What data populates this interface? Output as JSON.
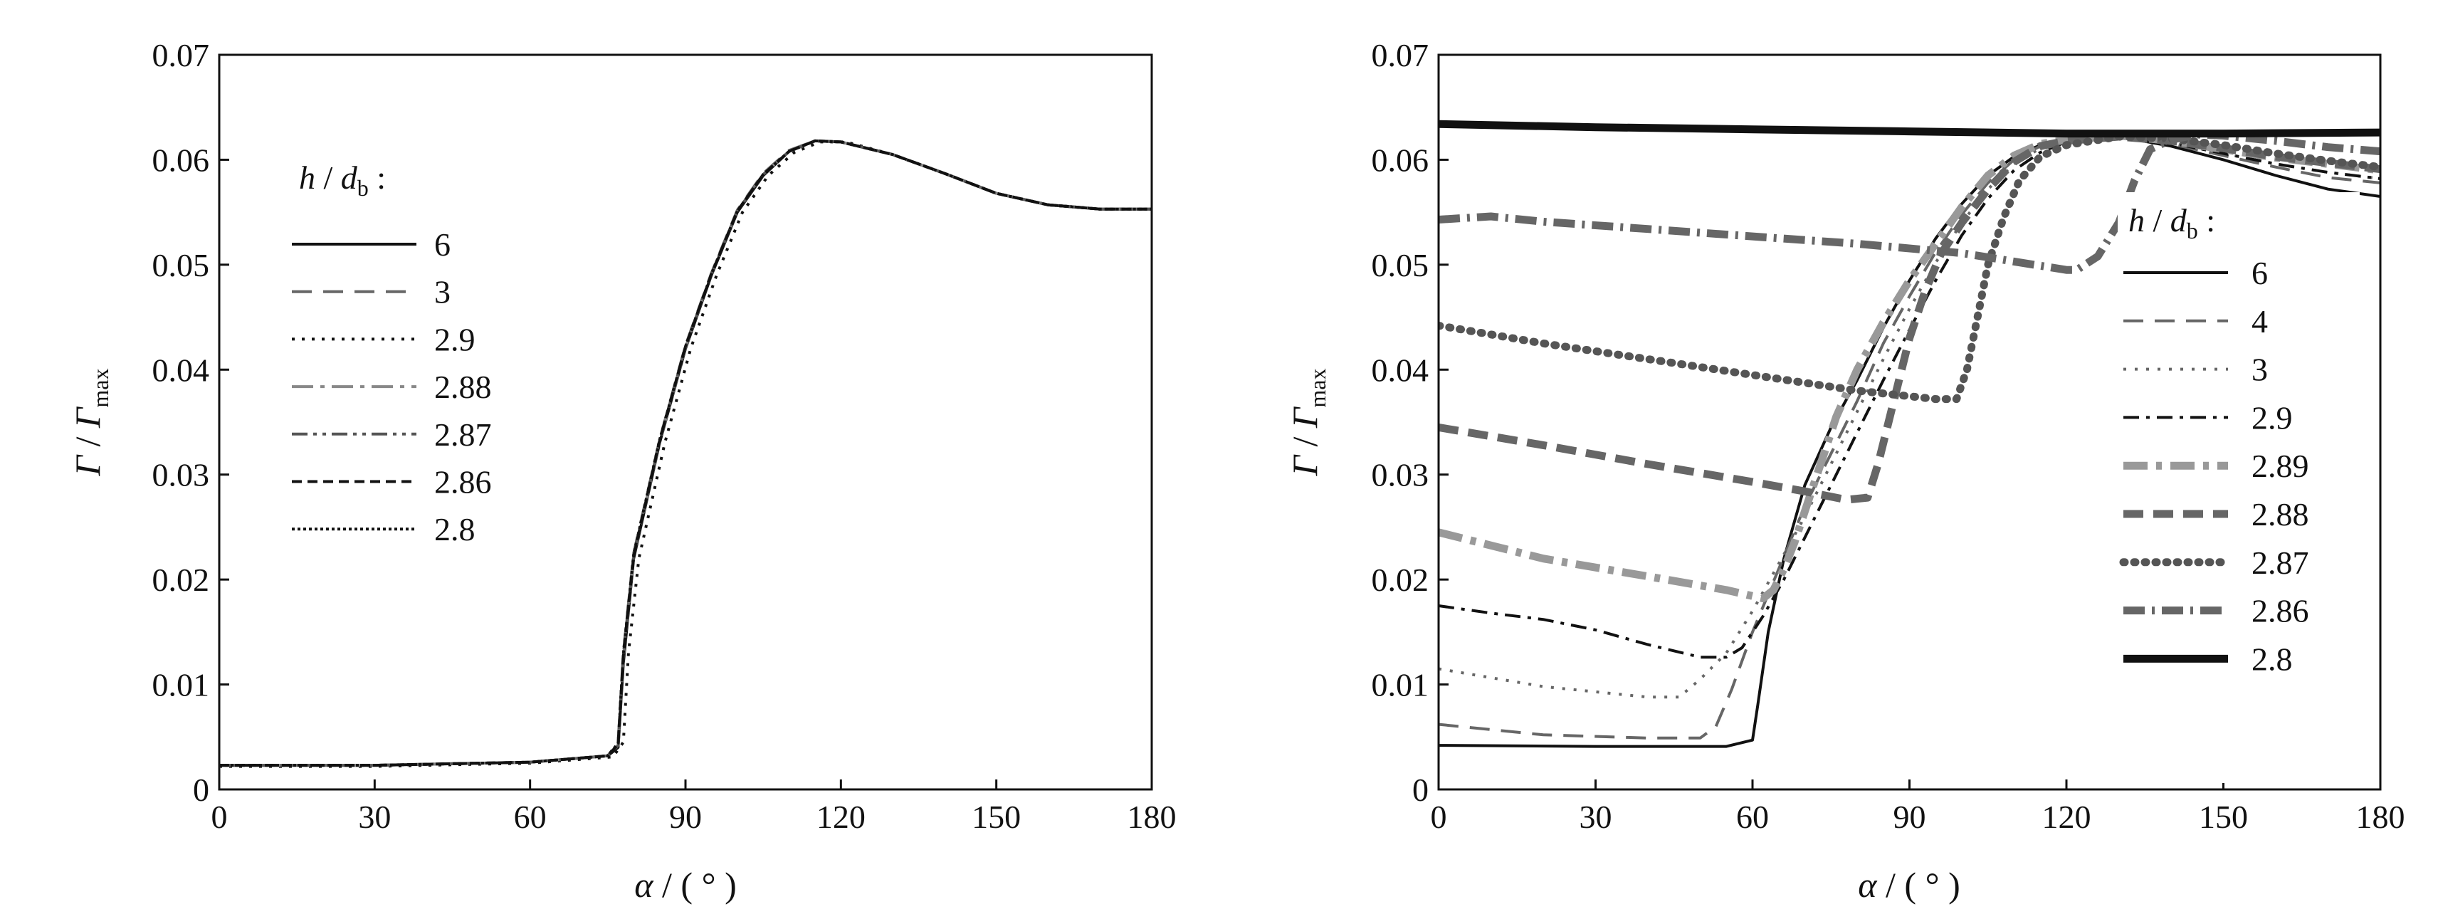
{
  "chart_data": [
    {
      "type": "line",
      "xlabel_sym": "α",
      "xlabel_unit": " / ( ° )",
      "ylabel_sym": "Γ",
      "ylabel_sep": " / ",
      "ylabel_sym2": "Γ",
      "ylabel_sub": "max",
      "xlim": [
        0,
        180
      ],
      "ylim": [
        0,
        0.07
      ],
      "xticks": [
        "0",
        "30",
        "60",
        "90",
        "120",
        "150",
        "180"
      ],
      "yticks": [
        "0",
        "0.01",
        "0.02",
        "0.03",
        "0.04",
        "0.05",
        "0.06",
        "0.07"
      ],
      "grid": false,
      "legend_title_sym": "h",
      "legend_title_sep": " / ",
      "legend_title_sym2": "d",
      "legend_title_sub": "b",
      "legend_title_colon": " :",
      "legend_position": "center-left",
      "series": [
        {
          "name": "6",
          "color": "#111111",
          "width": 4,
          "dash": "",
          "x": [
            0,
            30,
            60,
            75,
            77,
            78,
            80,
            85,
            90,
            95,
            100,
            105,
            110,
            115,
            120,
            130,
            140,
            150,
            160,
            170,
            180
          ],
          "y": [
            0.0023,
            0.0023,
            0.0026,
            0.0032,
            0.004,
            0.012,
            0.022,
            0.033,
            0.042,
            0.049,
            0.055,
            0.0585,
            0.0608,
            0.0618,
            0.0617,
            0.0605,
            0.0587,
            0.0568,
            0.0557,
            0.0553,
            0.0553
          ]
        },
        {
          "name": "3",
          "color": "#666666",
          "width": 4,
          "dash": "28,16",
          "x": [
            0,
            30,
            60,
            75,
            77,
            78,
            80,
            85,
            90,
            95,
            100,
            105,
            110,
            115,
            120,
            130,
            140,
            150,
            160,
            170,
            180
          ],
          "y": [
            0.0023,
            0.0023,
            0.0026,
            0.0032,
            0.0045,
            0.013,
            0.0225,
            0.0333,
            0.0423,
            0.0492,
            0.0552,
            0.0587,
            0.0609,
            0.0618,
            0.0617,
            0.0605,
            0.0587,
            0.0568,
            0.0557,
            0.0553,
            0.0553
          ]
        },
        {
          "name": "2.9",
          "color": "#111111",
          "width": 4,
          "dash": "4,10",
          "x": [
            0,
            30,
            60,
            76,
            78,
            79,
            81,
            86,
            91,
            96,
            101,
            106,
            111,
            116,
            121,
            130,
            140,
            150,
            160,
            170,
            180
          ],
          "y": [
            0.0022,
            0.0022,
            0.0025,
            0.0031,
            0.0045,
            0.013,
            0.022,
            0.033,
            0.042,
            0.049,
            0.055,
            0.0585,
            0.0607,
            0.0617,
            0.0617,
            0.0605,
            0.0587,
            0.0568,
            0.0557,
            0.0553,
            0.0553
          ]
        },
        {
          "name": "2.88",
          "color": "#888888",
          "width": 4,
          "dash": "30,10,6,10",
          "x": [
            0,
            30,
            60,
            75,
            77,
            78,
            80,
            85,
            90,
            95,
            100,
            105,
            110,
            115,
            120,
            130,
            140,
            150,
            160,
            170,
            180
          ],
          "y": [
            0.0023,
            0.0023,
            0.0026,
            0.0032,
            0.0042,
            0.0125,
            0.0222,
            0.0331,
            0.0421,
            0.0491,
            0.0551,
            0.0586,
            0.0608,
            0.0618,
            0.0617,
            0.0605,
            0.0587,
            0.0568,
            0.0557,
            0.0553,
            0.0553
          ]
        },
        {
          "name": "2.87",
          "color": "#555555",
          "width": 4,
          "dash": "22,8,5,8,5,8",
          "x": [
            0,
            30,
            60,
            75,
            77,
            78,
            80,
            85,
            90,
            95,
            100,
            105,
            110,
            115,
            120,
            130,
            140,
            150,
            160,
            170,
            180
          ],
          "y": [
            0.0023,
            0.0023,
            0.0026,
            0.0032,
            0.0042,
            0.0128,
            0.0223,
            0.0332,
            0.0422,
            0.0491,
            0.0551,
            0.0586,
            0.0608,
            0.0618,
            0.0617,
            0.0605,
            0.0587,
            0.0568,
            0.0557,
            0.0553,
            0.0553
          ]
        },
        {
          "name": "2.86",
          "color": "#111111",
          "width": 4,
          "dash": "14,8",
          "x": [
            0,
            30,
            60,
            75,
            77,
            78,
            80,
            85,
            90,
            95,
            100,
            105,
            110,
            115,
            120,
            130,
            140,
            150,
            160,
            170,
            180
          ],
          "y": [
            0.0023,
            0.0023,
            0.0026,
            0.0032,
            0.0043,
            0.0127,
            0.0222,
            0.0332,
            0.0422,
            0.0491,
            0.0551,
            0.0586,
            0.0608,
            0.0618,
            0.0617,
            0.0605,
            0.0587,
            0.0568,
            0.0557,
            0.0553,
            0.0553
          ]
        },
        {
          "name": "2.8",
          "color": "#111111",
          "width": 4,
          "dash": "4,4",
          "x": [
            0,
            30,
            60,
            75,
            77,
            78,
            80,
            85,
            90,
            95,
            100,
            105,
            110,
            115,
            120,
            130,
            140,
            150,
            160,
            170,
            180
          ],
          "y": [
            0.0023,
            0.0023,
            0.0026,
            0.0032,
            0.0044,
            0.0129,
            0.0224,
            0.0333,
            0.0422,
            0.0491,
            0.0551,
            0.0586,
            0.0608,
            0.0618,
            0.0617,
            0.0605,
            0.0587,
            0.0568,
            0.0557,
            0.0553,
            0.0553
          ]
        }
      ]
    },
    {
      "type": "line",
      "xlabel_sym": "α",
      "xlabel_unit": " / ( ° )",
      "ylabel_sym": "Γ",
      "ylabel_sep": " / ",
      "ylabel_sym2": "Γ",
      "ylabel_sub": "max",
      "xlim": [
        0,
        180
      ],
      "ylim": [
        0,
        0.07
      ],
      "xticks": [
        "0",
        "30",
        "60",
        "90",
        "120",
        "150",
        "180"
      ],
      "yticks": [
        "0",
        "0.01",
        "0.02",
        "0.03",
        "0.04",
        "0.05",
        "0.06",
        "0.07"
      ],
      "grid": false,
      "legend_title_sym": "h",
      "legend_title_sep": " / ",
      "legend_title_sym2": "d",
      "legend_title_sub": "b",
      "legend_title_colon": " :",
      "legend_position": "right",
      "series": [
        {
          "name": "6",
          "color": "#111111",
          "width": 4,
          "dash": "",
          "x": [
            0,
            30,
            55,
            60,
            61,
            63,
            66,
            70,
            75,
            80,
            85,
            90,
            95,
            100,
            105,
            110,
            115,
            120,
            130,
            140,
            150,
            160,
            170,
            180
          ],
          "y": [
            0.0042,
            0.0041,
            0.0041,
            0.0047,
            0.008,
            0.015,
            0.022,
            0.029,
            0.0345,
            0.039,
            0.044,
            0.0485,
            0.0525,
            0.0558,
            0.0585,
            0.0603,
            0.0614,
            0.062,
            0.0622,
            0.0613,
            0.06,
            0.0585,
            0.0572,
            0.0565
          ]
        },
        {
          "name": "4",
          "color": "#666666",
          "width": 4,
          "dash": "28,16",
          "x": [
            0,
            20,
            40,
            50,
            53,
            56,
            60,
            65,
            70,
            75,
            80,
            85,
            90,
            95,
            100,
            105,
            110,
            115,
            120,
            130,
            140,
            150,
            160,
            170,
            180
          ],
          "y": [
            0.0062,
            0.0052,
            0.0049,
            0.0049,
            0.006,
            0.0095,
            0.015,
            0.021,
            0.027,
            0.032,
            0.037,
            0.0425,
            0.047,
            0.0512,
            0.0548,
            0.0578,
            0.06,
            0.0613,
            0.0619,
            0.0622,
            0.0615,
            0.0604,
            0.0593,
            0.0583,
            0.0578
          ]
        },
        {
          "name": "3",
          "color": "#666666",
          "width": 4,
          "dash": "4,12",
          "x": [
            0,
            20,
            40,
            46,
            50,
            55,
            60,
            65,
            70,
            75,
            80,
            85,
            90,
            95,
            100,
            105,
            110,
            115,
            120,
            130,
            140,
            150,
            160,
            170,
            180
          ],
          "y": [
            0.0115,
            0.0098,
            0.0088,
            0.0088,
            0.0105,
            0.013,
            0.017,
            0.0215,
            0.026,
            0.031,
            0.036,
            0.041,
            0.0458,
            0.0502,
            0.054,
            0.0572,
            0.0596,
            0.0611,
            0.0618,
            0.0622,
            0.0616,
            0.0606,
            0.0596,
            0.0588,
            0.0582
          ]
        },
        {
          "name": "2.9",
          "color": "#111111",
          "width": 4,
          "dash": "22,10,5,10",
          "x": [
            0,
            10,
            20,
            30,
            40,
            50,
            55,
            58,
            62,
            66,
            70,
            75,
            80,
            85,
            90,
            95,
            100,
            105,
            110,
            115,
            120,
            130,
            140,
            150,
            160,
            170,
            180
          ],
          "y": [
            0.0175,
            0.0168,
            0.0162,
            0.0152,
            0.0138,
            0.0126,
            0.0126,
            0.0135,
            0.0165,
            0.02,
            0.024,
            0.029,
            0.034,
            0.039,
            0.0438,
            0.0485,
            0.0528,
            0.0563,
            0.059,
            0.0607,
            0.0617,
            0.0621,
            0.0616,
            0.0606,
            0.0596,
            0.0588,
            0.0582
          ]
        },
        {
          "name": "2.89",
          "color": "#999999",
          "width": 11,
          "dash": "34,12,8,12",
          "x": [
            0,
            20,
            40,
            55,
            62,
            64,
            66,
            68,
            70,
            73,
            76,
            80,
            85,
            90,
            95,
            100,
            105,
            110,
            115,
            120,
            130,
            140,
            150,
            160,
            170,
            180
          ],
          "y": [
            0.0245,
            0.022,
            0.0203,
            0.019,
            0.0182,
            0.019,
            0.021,
            0.0235,
            0.0265,
            0.031,
            0.0355,
            0.04,
            0.0445,
            0.0485,
            0.052,
            0.0555,
            0.0585,
            0.0604,
            0.0615,
            0.0619,
            0.0623,
            0.0618,
            0.061,
            0.0602,
            0.0596,
            0.059
          ]
        },
        {
          "name": "2.88",
          "color": "#666666",
          "width": 11,
          "dash": "28,14",
          "x": [
            0,
            20,
            40,
            60,
            70,
            78,
            82,
            84,
            86,
            88,
            90,
            93,
            96,
            100,
            105,
            110,
            115,
            120,
            130,
            140,
            150,
            160,
            170,
            180
          ],
          "y": [
            0.0345,
            0.0328,
            0.031,
            0.0293,
            0.0284,
            0.0276,
            0.0278,
            0.031,
            0.035,
            0.039,
            0.043,
            0.0475,
            0.051,
            0.054,
            0.0572,
            0.0598,
            0.0613,
            0.0618,
            0.0622,
            0.0618,
            0.0611,
            0.0603,
            0.0597,
            0.0591
          ]
        },
        {
          "name": "2.87",
          "color": "#555555",
          "width": 11,
          "dash": "2,13",
          "x": [
            0,
            20,
            40,
            60,
            80,
            95,
            99,
            101,
            103,
            105,
            108,
            111,
            115,
            120,
            130,
            140,
            150,
            160,
            170,
            180
          ],
          "y": [
            0.0442,
            0.0425,
            0.041,
            0.0395,
            0.038,
            0.0372,
            0.0372,
            0.04,
            0.045,
            0.05,
            0.0545,
            0.058,
            0.0603,
            0.0614,
            0.0622,
            0.062,
            0.0614,
            0.0606,
            0.0599,
            0.0593
          ]
        },
        {
          "name": "2.86",
          "color": "#666666",
          "width": 11,
          "dash": "30,10,4,10",
          "x": [
            0,
            10,
            20,
            40,
            60,
            80,
            100,
            115,
            120,
            122,
            126,
            130,
            133,
            136,
            140,
            145,
            150,
            160,
            170,
            180
          ],
          "y": [
            0.0543,
            0.0546,
            0.0541,
            0.0534,
            0.0527,
            0.052,
            0.0511,
            0.0499,
            0.0495,
            0.0495,
            0.0508,
            0.054,
            0.058,
            0.061,
            0.0619,
            0.0624,
            0.0623,
            0.0618,
            0.0612,
            0.0608
          ]
        },
        {
          "name": "2.8",
          "color": "#111111",
          "width": 11,
          "dash": "",
          "x": [
            0,
            30,
            60,
            90,
            120,
            150,
            180
          ],
          "y": [
            0.0634,
            0.0631,
            0.0629,
            0.0627,
            0.0625,
            0.0625,
            0.0626
          ]
        }
      ]
    }
  ]
}
